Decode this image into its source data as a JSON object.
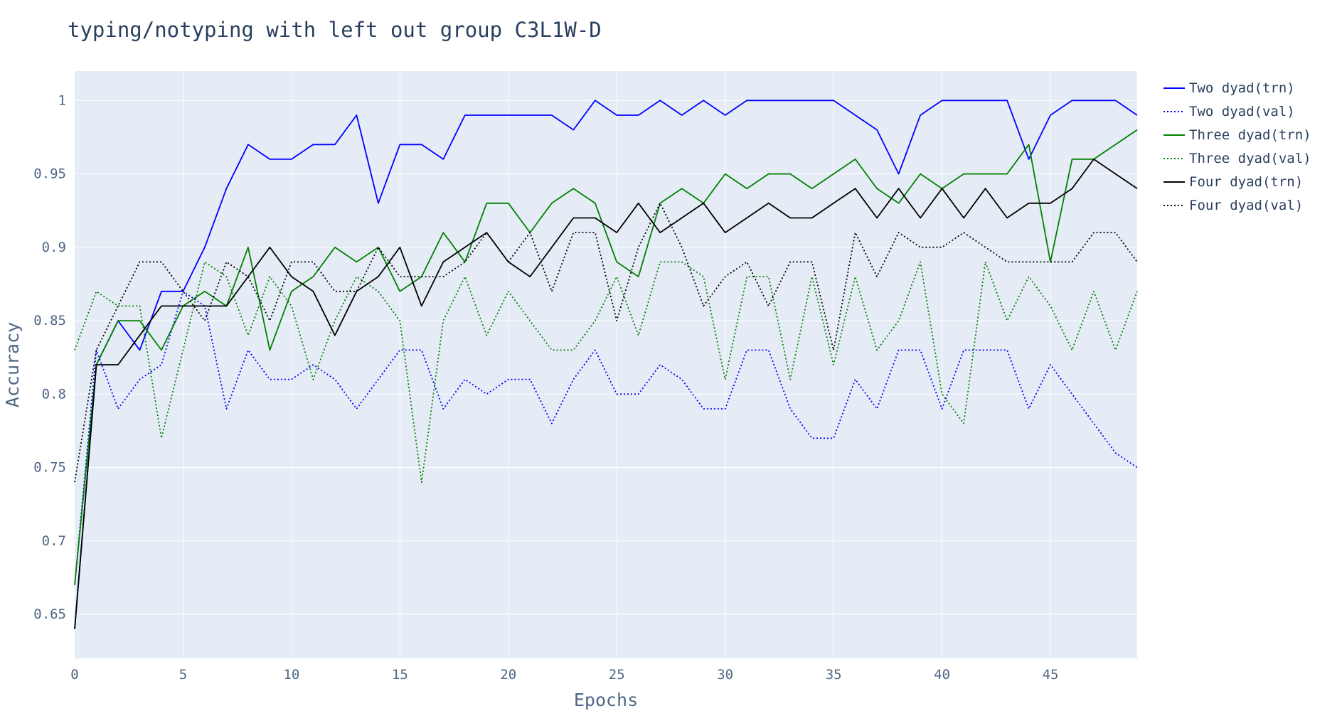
{
  "chart_data": {
    "type": "line",
    "title": "typing/notyping with left out group C3L1W-D",
    "xlabel": "Epochs",
    "ylabel": "Accuracy",
    "xlim": [
      0,
      49
    ],
    "ylim": [
      0.62,
      1.02
    ],
    "x_ticks": [
      0,
      5,
      10,
      15,
      20,
      25,
      30,
      35,
      40,
      45
    ],
    "y_ticks": [
      0.65,
      0.7,
      0.75,
      0.8,
      0.85,
      0.9,
      0.95,
      1
    ],
    "grid": true,
    "legend_position": "top-right",
    "plot_background": "#e5ecf6",
    "series": [
      {
        "name": "Two dyad(trn)",
        "color": "#0000ff",
        "dash": "solid",
        "values": [
          0.64,
          0.82,
          0.85,
          0.83,
          0.87,
          0.87,
          0.9,
          0.94,
          0.97,
          0.96,
          0.96,
          0.97,
          0.97,
          0.99,
          0.93,
          0.97,
          0.97,
          0.96,
          0.99,
          0.99,
          0.99,
          0.99,
          0.99,
          0.98,
          1.0,
          0.99,
          0.99,
          1.0,
          0.99,
          1.0,
          0.99,
          1.0,
          1.0,
          1.0,
          1.0,
          1.0,
          0.99,
          0.98,
          0.95,
          0.99,
          1.0,
          1.0,
          1.0,
          1.0,
          0.96,
          0.99,
          1.0,
          1.0,
          1.0,
          0.99
        ]
      },
      {
        "name": "Two dyad(val)",
        "color": "#0000ff",
        "dash": "dot",
        "values": [
          0.67,
          0.83,
          0.79,
          0.81,
          0.82,
          0.87,
          0.86,
          0.79,
          0.83,
          0.81,
          0.81,
          0.82,
          0.81,
          0.79,
          0.81,
          0.83,
          0.83,
          0.79,
          0.81,
          0.8,
          0.81,
          0.81,
          0.78,
          0.81,
          0.83,
          0.8,
          0.8,
          0.82,
          0.81,
          0.79,
          0.79,
          0.83,
          0.83,
          0.79,
          0.77,
          0.77,
          0.81,
          0.79,
          0.83,
          0.83,
          0.79,
          0.83,
          0.83,
          0.83,
          0.79,
          0.82,
          0.8,
          0.78,
          0.76,
          0.75
        ]
      },
      {
        "name": "Three dyad(trn)",
        "color": "#008000",
        "dash": "solid",
        "values": [
          0.67,
          0.82,
          0.85,
          0.85,
          0.83,
          0.86,
          0.87,
          0.86,
          0.9,
          0.83,
          0.87,
          0.88,
          0.9,
          0.89,
          0.9,
          0.87,
          0.88,
          0.91,
          0.89,
          0.93,
          0.93,
          0.91,
          0.93,
          0.94,
          0.93,
          0.89,
          0.88,
          0.93,
          0.94,
          0.93,
          0.95,
          0.94,
          0.95,
          0.95,
          0.94,
          0.95,
          0.96,
          0.94,
          0.93,
          0.95,
          0.94,
          0.95,
          0.95,
          0.95,
          0.97,
          0.89,
          0.96,
          0.96,
          0.97,
          0.98
        ]
      },
      {
        "name": "Three dyad(val)",
        "color": "#008000",
        "dash": "dot",
        "values": [
          0.83,
          0.87,
          0.86,
          0.86,
          0.77,
          0.83,
          0.89,
          0.88,
          0.84,
          0.88,
          0.86,
          0.81,
          0.85,
          0.88,
          0.87,
          0.85,
          0.74,
          0.85,
          0.88,
          0.84,
          0.87,
          0.85,
          0.83,
          0.83,
          0.85,
          0.88,
          0.84,
          0.89,
          0.89,
          0.88,
          0.81,
          0.88,
          0.88,
          0.81,
          0.88,
          0.82,
          0.88,
          0.83,
          0.85,
          0.89,
          0.8,
          0.78,
          0.89,
          0.85,
          0.88,
          0.86,
          0.83,
          0.87,
          0.83,
          0.87
        ]
      },
      {
        "name": "Four dyad(trn)",
        "color": "#000000",
        "dash": "solid",
        "values": [
          0.64,
          0.82,
          0.82,
          0.84,
          0.86,
          0.86,
          0.86,
          0.86,
          0.88,
          0.9,
          0.88,
          0.87,
          0.84,
          0.87,
          0.88,
          0.9,
          0.86,
          0.89,
          0.9,
          0.91,
          0.89,
          0.88,
          0.9,
          0.92,
          0.92,
          0.91,
          0.93,
          0.91,
          0.92,
          0.93,
          0.91,
          0.92,
          0.93,
          0.92,
          0.92,
          0.93,
          0.94,
          0.92,
          0.94,
          0.92,
          0.94,
          0.92,
          0.94,
          0.92,
          0.93,
          0.93,
          0.94,
          0.96,
          0.95,
          0.94
        ]
      },
      {
        "name": "Four dyad(val)",
        "color": "#000000",
        "dash": "dot",
        "values": [
          0.74,
          0.83,
          0.86,
          0.89,
          0.89,
          0.87,
          0.85,
          0.89,
          0.88,
          0.85,
          0.89,
          0.89,
          0.87,
          0.87,
          0.9,
          0.88,
          0.88,
          0.88,
          0.89,
          0.91,
          0.89,
          0.91,
          0.87,
          0.91,
          0.91,
          0.85,
          0.9,
          0.93,
          0.9,
          0.86,
          0.88,
          0.89,
          0.86,
          0.89,
          0.89,
          0.83,
          0.91,
          0.88,
          0.91,
          0.9,
          0.9,
          0.91,
          0.9,
          0.89,
          0.89,
          0.89,
          0.89,
          0.91,
          0.91,
          0.89
        ]
      }
    ]
  }
}
